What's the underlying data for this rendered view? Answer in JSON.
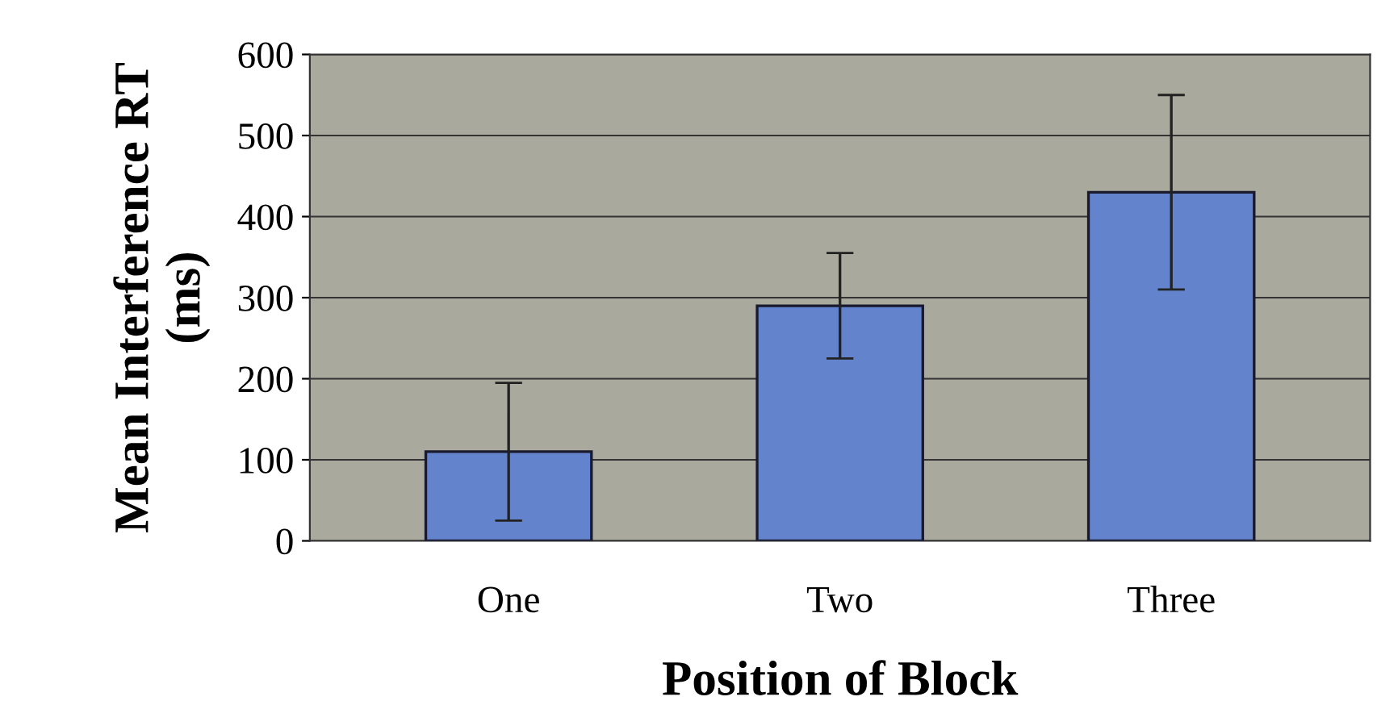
{
  "chart_data": {
    "type": "bar",
    "xlabel": "Position of Block",
    "ylabel": "Mean Interference RT\n(ms)",
    "categories": [
      "One",
      "Two",
      "Three"
    ],
    "values": [
      110,
      290,
      430
    ],
    "errors": [
      85,
      65,
      120
    ],
    "color": "#6383cc",
    "ylim": [
      0,
      600
    ],
    "yticks": [
      0,
      100,
      200,
      300,
      400,
      500,
      600
    ],
    "grid": "y"
  }
}
